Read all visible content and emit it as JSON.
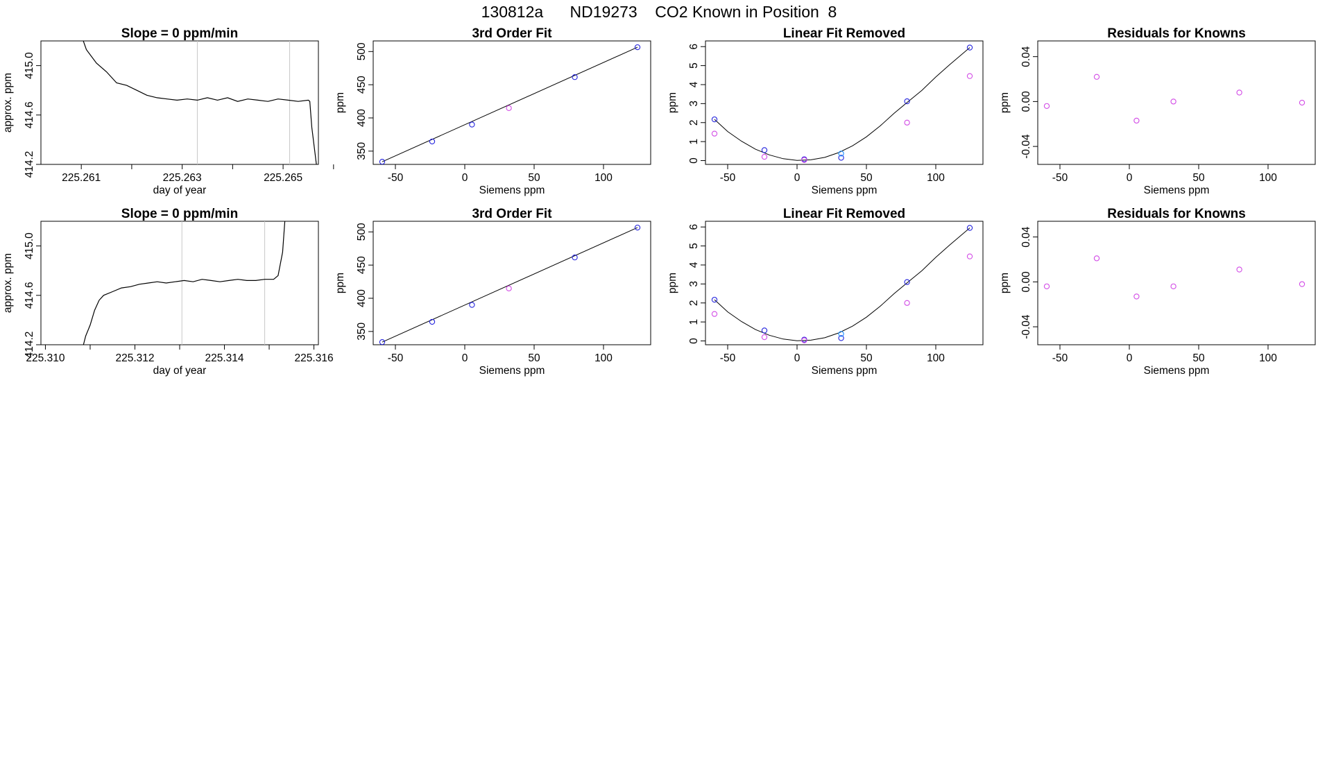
{
  "figure_title": "130812a      ND19273    CO2 Known in Position  8",
  "colors": {
    "blue": "#2222dd",
    "magenta": "#d24ae6",
    "cyan": "#1e90ff",
    "red": "#ff6b6b",
    "vline": "#c8c8c8",
    "line": "#000000"
  },
  "chart_data": [
    {
      "type": "line",
      "title": "Slope =  0  ppm/min",
      "xlabel": "day of year",
      "ylabel": "approx. ppm",
      "xlim": [
        225.2602,
        225.2657
      ],
      "ylim": [
        414.2,
        415.2
      ],
      "xticks": [
        225.261,
        225.262,
        225.263,
        225.264,
        225.265,
        225.266
      ],
      "xtick_labels": [
        "225.261",
        "",
        "225.263",
        "",
        "225.265",
        ""
      ],
      "yticks": [
        414.2,
        414.6,
        415.0
      ],
      "ytick_labels": [
        "414.2",
        "414.6",
        "415.0"
      ],
      "vlines": [
        225.2633,
        225.26513
      ],
      "series": [
        {
          "x": [
            225.26104,
            225.2611,
            225.2613,
            225.2615,
            225.2617,
            225.2619,
            225.2621,
            225.2623,
            225.2625,
            225.2627,
            225.2629,
            225.2631,
            225.2633,
            225.2635,
            225.2637,
            225.2639,
            225.2641,
            225.2643,
            225.2645,
            225.2647,
            225.2649,
            225.2651,
            225.2653,
            225.2655,
            225.26553,
            225.26557,
            225.26566
          ],
          "y": [
            415.2,
            415.13,
            415.02,
            414.95,
            414.86,
            414.84,
            414.8,
            414.76,
            414.74,
            414.73,
            414.72,
            414.73,
            414.72,
            414.74,
            414.72,
            414.74,
            414.71,
            414.73,
            414.72,
            414.71,
            414.73,
            414.72,
            414.71,
            414.72,
            414.71,
            414.5,
            414.2
          ]
        }
      ]
    },
    {
      "type": "scatter",
      "title": "3rd Order Fit",
      "xlabel": "Siemens ppm",
      "ylabel": "ppm",
      "xlim": [
        -66,
        134
      ],
      "ylim": [
        330,
        516
      ],
      "xticks": [
        -50,
        0,
        50,
        100
      ],
      "xtick_labels": [
        "-50",
        "0",
        "50",
        "100"
      ],
      "yticks": [
        350,
        400,
        450,
        500
      ],
      "ytick_labels": [
        "350",
        "400",
        "450",
        "500"
      ],
      "fit_line": {
        "x": [
          -59.5,
          124.5
        ],
        "y": [
          334,
          506.5
        ]
      },
      "series": [
        {
          "color": "blue",
          "x": [
            -59.5,
            -23.5,
            5.2,
            79.3,
            124.5
          ],
          "y": [
            334,
            364.5,
            390,
            461.5,
            506.5
          ]
        },
        {
          "color": "magenta",
          "x": [
            31.8
          ],
          "y": [
            414.8
          ]
        }
      ]
    },
    {
      "type": "scatter",
      "title": "Linear Fit Removed",
      "xlabel": "Siemens ppm",
      "ylabel": "ppm",
      "xlim": [
        -66,
        134
      ],
      "ylim": [
        -0.2,
        6.3
      ],
      "xticks": [
        -50,
        0,
        50,
        100
      ],
      "xtick_labels": [
        "-50",
        "0",
        "50",
        "100"
      ],
      "yticks": [
        0,
        1,
        2,
        3,
        4,
        5,
        6
      ],
      "ytick_labels": [
        "0",
        "1",
        "2",
        "3",
        "4",
        "5",
        "6"
      ],
      "curve": {
        "x": [
          -59.5,
          -50,
          -40,
          -30,
          -20,
          -10,
          0,
          10,
          20,
          30,
          40,
          50,
          60,
          70,
          80,
          90,
          100,
          110,
          124.5
        ],
        "y": [
          2.17,
          1.53,
          1.02,
          0.6,
          0.3,
          0.1,
          0.01,
          0.04,
          0.17,
          0.42,
          0.78,
          1.25,
          1.83,
          2.49,
          3.1,
          3.7,
          4.4,
          5.05,
          5.95
        ]
      },
      "series": [
        {
          "color": "blue",
          "x": [
            -59.5,
            -23.5,
            5.2,
            31.8,
            79.3,
            124.5
          ],
          "y": [
            2.17,
            0.55,
            0.07,
            0.15,
            3.12,
            5.95
          ]
        },
        {
          "color": "magenta",
          "x": [
            -59.5,
            -23.5,
            5.2,
            79.3,
            124.5
          ],
          "y": [
            1.42,
            0.2,
            0.03,
            2.0,
            4.45
          ]
        },
        {
          "color": "cyan",
          "x": [
            31.8
          ],
          "y": [
            0.37
          ]
        }
      ]
    },
    {
      "type": "scatter",
      "title": "Residuals for Knowns",
      "xlabel": "Siemens ppm",
      "ylabel": "ppm",
      "xlim": [
        -66,
        134
      ],
      "ylim": [
        -0.056,
        0.054
      ],
      "xticks": [
        -50,
        0,
        50,
        100
      ],
      "xtick_labels": [
        "-50",
        "0",
        "50",
        "100"
      ],
      "yticks": [
        -0.04,
        0.0,
        0.04
      ],
      "ytick_labels": [
        "-0.04",
        "0.00",
        "0.04"
      ],
      "series": [
        {
          "color": "magenta",
          "x": [
            -59.5,
            -23.5,
            5.2,
            31.8,
            79.3,
            124.5
          ],
          "y": [
            -0.004,
            0.022,
            -0.017,
            0.0,
            0.008,
            -0.001
          ]
        }
      ]
    },
    {
      "type": "line",
      "title": "Slope =  0  ppm/min",
      "xlabel": "day of year",
      "ylabel": "approx. ppm",
      "xlim": [
        225.3099,
        225.3161
      ],
      "ylim": [
        414.2,
        415.2
      ],
      "xticks": [
        225.31,
        225.311,
        225.312,
        225.313,
        225.314,
        225.315,
        225.316
      ],
      "xtick_labels": [
        "225.310",
        "",
        "225.312",
        "",
        "225.314",
        "",
        "225.316"
      ],
      "yticks": [
        414.2,
        414.6,
        415.0
      ],
      "ytick_labels": [
        "414.2",
        "414.6",
        "415.0"
      ],
      "vlines": [
        225.31305,
        225.3149
      ],
      "series": [
        {
          "x": [
            225.31085,
            225.3109,
            225.311,
            225.3111,
            225.3112,
            225.3113,
            225.3115,
            225.3117,
            225.3119,
            225.3121,
            225.3123,
            225.3125,
            225.3127,
            225.3129,
            225.3131,
            225.3133,
            225.3135,
            225.3137,
            225.3139,
            225.3141,
            225.3143,
            225.3145,
            225.3147,
            225.3149,
            225.3151,
            225.3152,
            225.3153,
            225.31535
          ],
          "y": [
            414.2,
            414.27,
            414.36,
            414.48,
            414.56,
            414.6,
            414.63,
            414.66,
            414.67,
            414.69,
            414.7,
            414.71,
            414.7,
            414.71,
            414.72,
            414.71,
            414.73,
            414.72,
            414.71,
            414.72,
            414.73,
            414.72,
            414.72,
            414.73,
            414.73,
            414.76,
            414.95,
            415.2
          ]
        }
      ]
    },
    {
      "type": "scatter",
      "title": "3rd Order Fit",
      "xlabel": "Siemens ppm",
      "ylabel": "ppm",
      "xlim": [
        -66,
        134
      ],
      "ylim": [
        330,
        516
      ],
      "xticks": [
        -50,
        0,
        50,
        100
      ],
      "xtick_labels": [
        "-50",
        "0",
        "50",
        "100"
      ],
      "yticks": [
        350,
        400,
        450,
        500
      ],
      "ytick_labels": [
        "350",
        "400",
        "450",
        "500"
      ],
      "fit_line": {
        "x": [
          -59.5,
          124.5
        ],
        "y": [
          334,
          506.5
        ]
      },
      "series": [
        {
          "color": "blue",
          "x": [
            -59.5,
            -23.5,
            5.2,
            79.3,
            124.5
          ],
          "y": [
            334,
            364.5,
            390,
            461.5,
            506.5
          ]
        },
        {
          "color": "magenta",
          "x": [
            31.8
          ],
          "y": [
            414.8
          ]
        }
      ]
    },
    {
      "type": "scatter",
      "title": "Linear Fit Removed",
      "xlabel": "Siemens ppm",
      "ylabel": "ppm",
      "xlim": [
        -66,
        134
      ],
      "ylim": [
        -0.2,
        6.3
      ],
      "xticks": [
        -50,
        0,
        50,
        100
      ],
      "xtick_labels": [
        "-50",
        "0",
        "50",
        "100"
      ],
      "yticks": [
        0,
        1,
        2,
        3,
        4,
        5,
        6
      ],
      "ytick_labels": [
        "0",
        "1",
        "2",
        "3",
        "4",
        "5",
        "6"
      ],
      "curve": {
        "x": [
          -59.5,
          -50,
          -40,
          -30,
          -20,
          -10,
          0,
          10,
          20,
          30,
          40,
          50,
          60,
          70,
          80,
          90,
          100,
          110,
          124.5
        ],
        "y": [
          2.17,
          1.53,
          1.02,
          0.6,
          0.3,
          0.1,
          0.01,
          0.04,
          0.17,
          0.42,
          0.78,
          1.25,
          1.83,
          2.49,
          3.1,
          3.7,
          4.4,
          5.05,
          5.95
        ]
      },
      "series": [
        {
          "color": "blue",
          "x": [
            -59.5,
            -23.5,
            5.2,
            31.8,
            79.3,
            124.5
          ],
          "y": [
            2.17,
            0.55,
            0.07,
            0.15,
            3.1,
            5.95
          ]
        },
        {
          "color": "magenta",
          "x": [
            -59.5,
            -23.5,
            5.2,
            79.3,
            124.5
          ],
          "y": [
            1.42,
            0.2,
            0.03,
            2.0,
            4.45
          ]
        },
        {
          "color": "cyan",
          "x": [
            31.8
          ],
          "y": [
            0.37
          ]
        }
      ]
    },
    {
      "type": "scatter",
      "title": "Residuals for Knowns",
      "xlabel": "Siemens ppm",
      "ylabel": "ppm",
      "xlim": [
        -66,
        134
      ],
      "ylim": [
        -0.056,
        0.054
      ],
      "xticks": [
        -50,
        0,
        50,
        100
      ],
      "xtick_labels": [
        "-50",
        "0",
        "50",
        "100"
      ],
      "yticks": [
        -0.04,
        0.0,
        0.04
      ],
      "ytick_labels": [
        "-0.04",
        "0.00",
        "0.04"
      ],
      "series": [
        {
          "color": "magenta",
          "x": [
            -59.5,
            -23.5,
            5.2,
            31.8,
            79.3,
            124.5
          ],
          "y": [
            -0.004,
            0.021,
            -0.013,
            -0.004,
            0.011,
            -0.002
          ]
        }
      ]
    }
  ]
}
